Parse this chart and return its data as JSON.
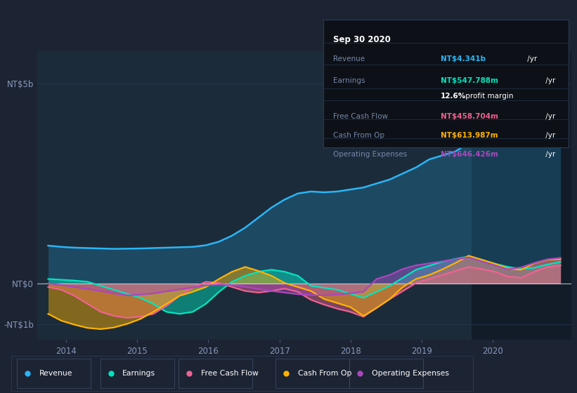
{
  "background_color": "#1c2333",
  "chart_bg": "#1c2b3a",
  "title": "Sep 30 2020",
  "yticks_labels": [
    "NT$5b",
    "NT$0",
    "-NT$1b"
  ],
  "yticks_values": [
    5000000000,
    0,
    -1000000000
  ],
  "ylim": [
    -1400000000,
    5800000000
  ],
  "xlim": [
    2013.6,
    2021.1
  ],
  "xtick_labels": [
    "2014",
    "2015",
    "2016",
    "2017",
    "2018",
    "2019",
    "2020"
  ],
  "xtick_values": [
    2014,
    2015,
    2016,
    2017,
    2018,
    2019,
    2020
  ],
  "colors": {
    "revenue": "#29b6f6",
    "earnings": "#00e5be",
    "free_cash_flow": "#f06292",
    "cash_from_op": "#ffb300",
    "operating_expenses": "#ab47bc"
  },
  "tooltip_title": "Sep 30 2020",
  "tooltip_bg": "#0d1117",
  "tooltip_border": "#2a3a55",
  "tooltip_data": {
    "Revenue": {
      "value": "NT$4.341b /yr",
      "color": "#29b6f6"
    },
    "Earnings": {
      "value": "NT$547.788m /yr",
      "color": "#00e5be"
    },
    "profit_margin": "12.6% profit margin",
    "Free Cash Flow": {
      "value": "NT$458.704m /yr",
      "color": "#f06292"
    },
    "Cash From Op": {
      "value": "NT$613.987m /yr",
      "color": "#ffb300"
    },
    "Operating Expenses": {
      "value": "NT$646.426m /yr",
      "color": "#ab47bc"
    }
  },
  "x_start": 2013.75,
  "x_end": 2020.95,
  "shade_x_start": 2019.7,
  "revenue": [
    950,
    920,
    900,
    890,
    880,
    870,
    875,
    880,
    890,
    900,
    910,
    920,
    960,
    1050,
    1200,
    1400,
    1650,
    1900,
    2100,
    2250,
    2300,
    2280,
    2300,
    2350,
    2400,
    2500,
    2600,
    2750,
    2900,
    3100,
    3200,
    3300,
    3500,
    3700,
    4000,
    4500,
    4800,
    4600,
    4450,
    4341
  ],
  "earnings": [
    120,
    100,
    80,
    50,
    -50,
    -150,
    -250,
    -350,
    -500,
    -700,
    -750,
    -700,
    -500,
    -200,
    50,
    200,
    300,
    350,
    300,
    200,
    -50,
    -100,
    -150,
    -250,
    -350,
    -200,
    -50,
    150,
    350,
    450,
    550,
    620,
    680,
    600,
    500,
    420,
    370,
    400,
    480,
    548
  ],
  "free_cash_flow": [
    -80,
    -150,
    -300,
    -500,
    -700,
    -800,
    -850,
    -820,
    -750,
    -550,
    -300,
    -100,
    50,
    20,
    -80,
    -180,
    -220,
    -180,
    -120,
    -200,
    -400,
    -520,
    -620,
    -700,
    -820,
    -600,
    -380,
    -180,
    20,
    120,
    220,
    320,
    420,
    370,
    300,
    180,
    150,
    300,
    420,
    458
  ],
  "cash_from_op": [
    -750,
    -920,
    -1020,
    -1100,
    -1130,
    -1090,
    -1000,
    -880,
    -700,
    -500,
    -300,
    -200,
    -80,
    120,
    300,
    420,
    320,
    200,
    20,
    -80,
    -180,
    -380,
    -480,
    -580,
    -800,
    -600,
    -380,
    -80,
    120,
    220,
    360,
    520,
    700,
    600,
    500,
    380,
    350,
    510,
    600,
    614
  ],
  "operating_expenses": [
    10,
    -30,
    -80,
    -130,
    -180,
    -240,
    -290,
    -270,
    -240,
    -190,
    -140,
    -90,
    -40,
    -20,
    -30,
    -80,
    -130,
    -180,
    -220,
    -260,
    -280,
    -290,
    -270,
    -240,
    -200,
    120,
    220,
    370,
    460,
    510,
    560,
    610,
    660,
    560,
    460,
    360,
    410,
    520,
    610,
    646
  ]
}
